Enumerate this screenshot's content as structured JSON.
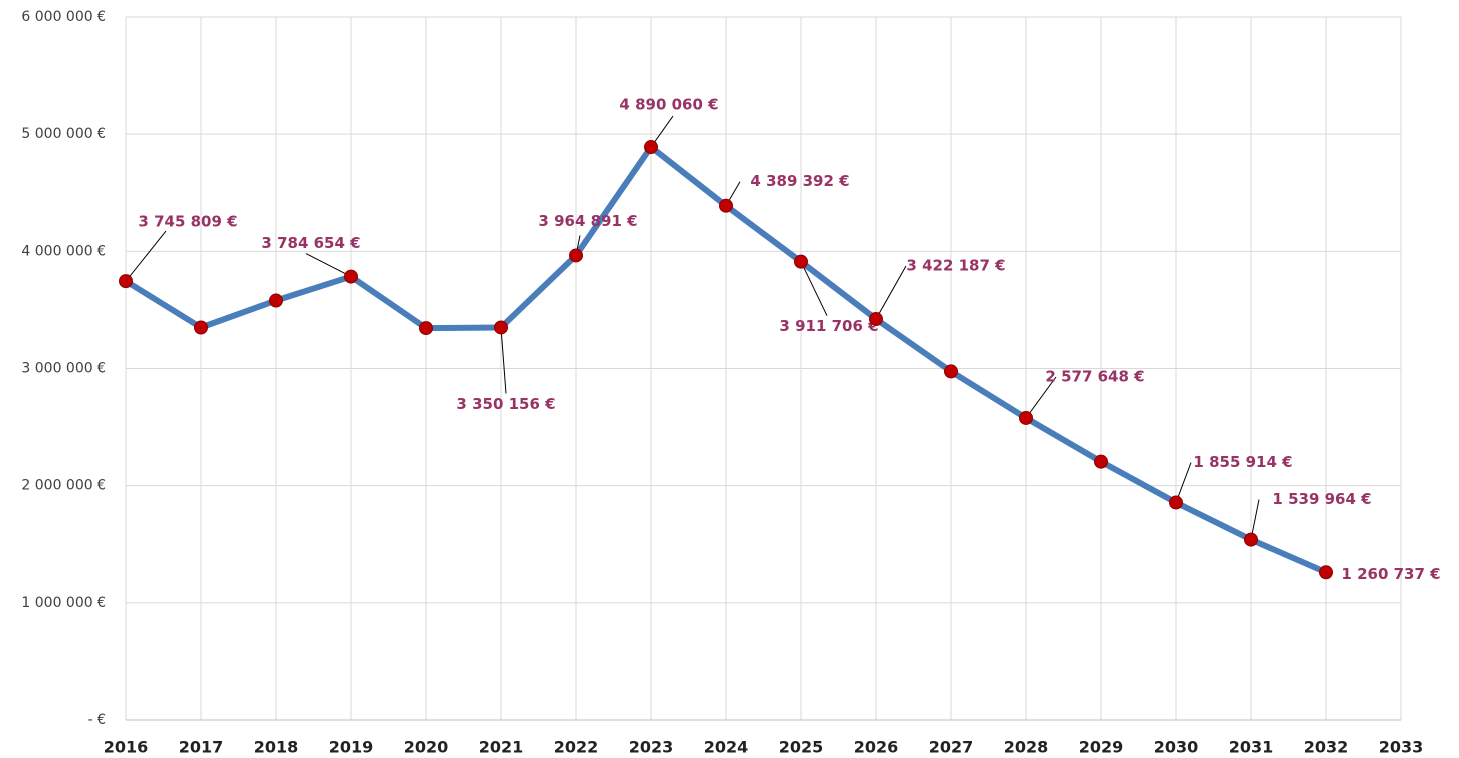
{
  "chart_data": {
    "type": "line",
    "categories": [
      "2016",
      "2017",
      "2018",
      "2019",
      "2020",
      "2021",
      "2022",
      "2023",
      "2024",
      "2025",
      "2026",
      "2027",
      "2028",
      "2029",
      "2030",
      "2031",
      "2032",
      "2033"
    ],
    "values": [
      3745809,
      3350000,
      3580000,
      3784654,
      3345000,
      3350156,
      3964891,
      4890060,
      4389392,
      3911706,
      3422187,
      2975000,
      2577648,
      2205000,
      1855914,
      1539964,
      1260737,
      null
    ],
    "value_labels": [
      "3 745 809 €",
      null,
      null,
      "3 784 654 €",
      null,
      "3 350 156 €",
      "3 964 891 €",
      "4 890 060 €",
      "4 389 392 €",
      "3 911 706 €",
      "3 422 187 €",
      null,
      "2 577 648 €",
      null,
      "1 855 914 €",
      "1 539 964 €",
      "1 260 737 €",
      null
    ],
    "color": "#4a7ebb",
    "marker_color": "#c00000",
    "label_color": "#993366",
    "ylim": [
      0,
      6000000
    ],
    "yticks": [
      {
        "value": 0,
        "label": "- €"
      },
      {
        "value": 1000000,
        "label": "1 000 000 €"
      },
      {
        "value": 2000000,
        "label": "2 000 000 €"
      },
      {
        "value": 3000000,
        "label": "3 000 000 €"
      },
      {
        "value": 4000000,
        "label": "4 000 000 €"
      },
      {
        "value": 5000000,
        "label": "5 000 000 €"
      },
      {
        "value": 6000000,
        "label": "6 000 000 €"
      }
    ],
    "grid": true
  }
}
